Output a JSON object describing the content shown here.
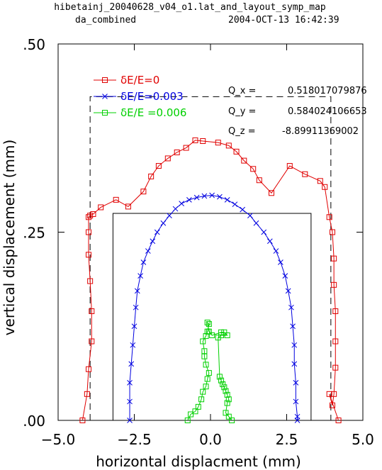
{
  "header": {
    "line1": "hibetainj_20040628_v04_o1.lat_and_layout_symp_map",
    "line2_left": "da_combined",
    "line2_right": "2004-OCT-13  16:42:39"
  },
  "tunes": [
    {
      "label": "Q_x  =",
      "value": "0.518017079876"
    },
    {
      "label": "Q_y  =",
      "value": "0.584024106653"
    },
    {
      "label": "Q_z  =",
      "value": "-8.89911369002"
    }
  ],
  "colors": {
    "series0": "#e00000",
    "series1": "#0000e0",
    "series2": "#00d000",
    "frame": "#000000"
  },
  "chart_data": {
    "type": "line",
    "title": "",
    "xlabel": "horizontal displacment (mm)",
    "ylabel": "vertical displacement (mm)",
    "xlim": [
      -5.0,
      5.0
    ],
    "ylim": [
      0.0,
      0.5
    ],
    "xticks": [
      -5.0,
      -2.5,
      0.0,
      2.5,
      5.0
    ],
    "xtick_labels": [
      "−5.0",
      "−2.5",
      "0.0",
      "2.5",
      "5.0"
    ],
    "yticks": [
      0.0,
      0.25,
      0.5
    ],
    "ytick_labels": [
      ".00",
      ".25",
      ".50"
    ],
    "legend_position": "top-left",
    "apertures": [
      {
        "style": "dashed",
        "x": [
          -3.95,
          3.95
        ],
        "y": [
          0.0,
          0.43
        ]
      },
      {
        "style": "solid",
        "x": [
          -3.2,
          3.3
        ],
        "y": [
          0.0,
          0.275
        ]
      }
    ],
    "series": [
      {
        "name": "δE/E=0",
        "marker": "square",
        "x": [
          -4.2,
          -4.05,
          -4.0,
          -3.9,
          -3.9,
          -3.95,
          -4.0,
          -4.0,
          -4.0,
          -3.95,
          -3.85,
          -3.6,
          -3.1,
          -2.7,
          -2.2,
          -1.95,
          -1.7,
          -1.4,
          -1.1,
          -0.8,
          -0.5,
          -0.25,
          0.25,
          0.6,
          0.85,
          1.1,
          1.4,
          1.6,
          2.0,
          2.6,
          3.1,
          3.6,
          3.75,
          3.9,
          4.0,
          4.05,
          4.05,
          4.1,
          4.1,
          4.1,
          4.05,
          4.0,
          3.9,
          4.2
        ],
        "y": [
          0.0,
          0.035,
          0.068,
          0.105,
          0.145,
          0.185,
          0.22,
          0.25,
          0.27,
          0.272,
          0.274,
          0.283,
          0.293,
          0.284,
          0.304,
          0.324,
          0.338,
          0.348,
          0.356,
          0.362,
          0.372,
          0.371,
          0.369,
          0.365,
          0.357,
          0.345,
          0.334,
          0.319,
          0.302,
          0.338,
          0.327,
          0.318,
          0.31,
          0.27,
          0.25,
          0.215,
          0.18,
          0.145,
          0.105,
          0.07,
          0.035,
          0.02,
          0.035,
          0.0
        ]
      },
      {
        "name": "δE/E=0.003",
        "marker": "x",
        "x": [
          -2.65,
          -2.65,
          -2.65,
          -2.6,
          -2.55,
          -2.5,
          -2.45,
          -2.4,
          -2.3,
          -2.2,
          -2.05,
          -1.9,
          -1.75,
          -1.55,
          -1.35,
          -1.15,
          -0.95,
          -0.7,
          -0.45,
          -0.2,
          0.05,
          0.3,
          0.55,
          0.8,
          1.05,
          1.3,
          1.5,
          1.75,
          1.95,
          2.15,
          2.3,
          2.45,
          2.55,
          2.65,
          2.7,
          2.75,
          2.75,
          2.8,
          2.8,
          2.85,
          2.85
        ],
        "y": [
          0.0,
          0.025,
          0.05,
          0.075,
          0.1,
          0.125,
          0.15,
          0.172,
          0.192,
          0.21,
          0.225,
          0.238,
          0.25,
          0.262,
          0.272,
          0.281,
          0.288,
          0.293,
          0.296,
          0.298,
          0.299,
          0.297,
          0.293,
          0.287,
          0.28,
          0.272,
          0.262,
          0.25,
          0.238,
          0.225,
          0.21,
          0.192,
          0.172,
          0.15,
          0.125,
          0.1,
          0.075,
          0.05,
          0.025,
          0.005,
          0.0
        ]
      },
      {
        "name": "δE/E =0.006",
        "marker": "square",
        "x": [
          -0.75,
          -0.65,
          -0.5,
          -0.4,
          -0.3,
          -0.25,
          -0.15,
          -0.1,
          -0.05,
          -0.15,
          -0.2,
          -0.2,
          -0.25,
          -0.15,
          -0.1,
          -0.05,
          -0.1,
          -0.05,
          0.05,
          0.35,
          0.45,
          0.55,
          0.35,
          0.25,
          0.3,
          0.35,
          0.4,
          0.45,
          0.5,
          0.55,
          0.6,
          0.55,
          0.5,
          0.6,
          0.7
        ],
        "y": [
          0.0,
          0.008,
          0.012,
          0.018,
          0.028,
          0.038,
          0.045,
          0.055,
          0.063,
          0.074,
          0.085,
          0.092,
          0.105,
          0.112,
          0.118,
          0.128,
          0.13,
          0.118,
          0.113,
          0.117,
          0.117,
          0.113,
          0.113,
          0.11,
          0.058,
          0.053,
          0.048,
          0.044,
          0.039,
          0.034,
          0.028,
          0.023,
          0.01,
          0.005,
          0.0
        ]
      }
    ]
  }
}
